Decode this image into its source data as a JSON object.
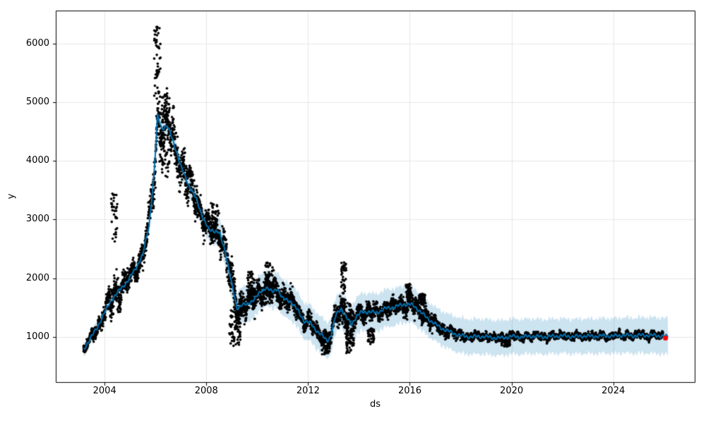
{
  "chart_data": {
    "type": "scatter",
    "description": "Prophet-style time series forecast: black observation dots, blue yhat line with light-blue uncertainty band, red marker on final point",
    "xlabel": "ds",
    "ylabel": "y",
    "xlim": [
      2002.08,
      2027.2
    ],
    "ylim": [
      230,
      6560
    ],
    "xticks": [
      2004,
      2008,
      2012,
      2016,
      2020,
      2024
    ],
    "yticks": [
      1000,
      2000,
      3000,
      4000,
      5000,
      6000
    ],
    "grid": true,
    "legend": null,
    "colors": {
      "line": "#0072B2",
      "band": "rgba(0,114,178,0.2)",
      "observations": "#000000",
      "last_point": "#ff0000",
      "gridline": "#e6e6e6",
      "spine": "#000000"
    },
    "forecast_line": {
      "name": "yhat",
      "points": [
        [
          2003.17,
          780
        ],
        [
          2003.4,
          950
        ],
        [
          2003.7,
          1150
        ],
        [
          2004.0,
          1420
        ],
        [
          2004.3,
          1650
        ],
        [
          2004.6,
          1800
        ],
        [
          2004.9,
          1950
        ],
        [
          2005.2,
          2150
        ],
        [
          2005.5,
          2400
        ],
        [
          2005.75,
          2900
        ],
        [
          2005.95,
          3800
        ],
        [
          2006.08,
          4760
        ],
        [
          2006.25,
          4550
        ],
        [
          2006.45,
          4600
        ],
        [
          2006.6,
          4450
        ],
        [
          2006.8,
          4200
        ],
        [
          2007.0,
          3900
        ],
        [
          2007.3,
          3600
        ],
        [
          2007.6,
          3350
        ],
        [
          2007.9,
          3000
        ],
        [
          2008.1,
          2820
        ],
        [
          2008.3,
          2815
        ],
        [
          2008.5,
          2780
        ],
        [
          2008.75,
          2450
        ],
        [
          2009.0,
          1900
        ],
        [
          2009.2,
          1480
        ],
        [
          2009.4,
          1560
        ],
        [
          2009.6,
          1540
        ],
        [
          2009.8,
          1620
        ],
        [
          2010.0,
          1700
        ],
        [
          2010.35,
          1850
        ],
        [
          2010.6,
          1760
        ],
        [
          2010.8,
          1830
        ],
        [
          2011.0,
          1650
        ],
        [
          2011.3,
          1610
        ],
        [
          2011.6,
          1450
        ],
        [
          2011.85,
          1270
        ],
        [
          2012.1,
          1230
        ],
        [
          2012.35,
          1100
        ],
        [
          2012.6,
          1000
        ],
        [
          2012.75,
          940
        ],
        [
          2012.9,
          1020
        ],
        [
          2013.1,
          1380
        ],
        [
          2013.3,
          1490
        ],
        [
          2013.5,
          1330
        ],
        [
          2013.7,
          1215
        ],
        [
          2013.9,
          1350
        ],
        [
          2014.1,
          1420
        ],
        [
          2014.4,
          1430
        ],
        [
          2014.7,
          1410
        ],
        [
          2015.0,
          1480
        ],
        [
          2015.4,
          1510
        ],
        [
          2015.8,
          1560
        ],
        [
          2016.1,
          1545
        ],
        [
          2016.35,
          1460
        ],
        [
          2016.6,
          1350
        ],
        [
          2016.9,
          1250
        ],
        [
          2017.2,
          1160
        ],
        [
          2017.6,
          1080
        ],
        [
          2018.0,
          1020
        ],
        [
          2018.4,
          1000
        ],
        [
          2018.8,
          1010
        ],
        [
          2019.2,
          990
        ],
        [
          2019.6,
          980
        ],
        [
          2020.0,
          1010
        ],
        [
          2020.4,
          1000
        ],
        [
          2020.8,
          1015
        ],
        [
          2021.2,
          1000
        ],
        [
          2021.6,
          1010
        ],
        [
          2022.0,
          1020
        ],
        [
          2022.4,
          1005
        ],
        [
          2022.8,
          1015
        ],
        [
          2023.2,
          1010
        ],
        [
          2023.6,
          1020
        ],
        [
          2024.0,
          1015
        ],
        [
          2024.4,
          1030
        ],
        [
          2024.8,
          1020
        ],
        [
          2025.2,
          1030
        ],
        [
          2025.6,
          1025
        ],
        [
          2026.0,
          1015
        ],
        [
          2026.15,
          1000
        ]
      ],
      "wiggle": {
        "amp1": 16,
        "period1": 0.5,
        "amp2": 20,
        "period2": 0.155
      }
    },
    "uncertainty_band": {
      "x_start": 2003.17,
      "x_end": 2026.15,
      "half_width": [
        [
          2003.17,
          110
        ],
        [
          2004.0,
          100
        ],
        [
          2005.0,
          110
        ],
        [
          2006.1,
          130
        ],
        [
          2007.0,
          160
        ],
        [
          2008.0,
          200
        ],
        [
          2008.8,
          260
        ],
        [
          2009.5,
          310
        ],
        [
          2010.5,
          300
        ],
        [
          2012.0,
          310
        ],
        [
          2013.0,
          300
        ],
        [
          2014.0,
          320
        ],
        [
          2015.0,
          320
        ],
        [
          2016.0,
          310
        ],
        [
          2017.0,
          290
        ],
        [
          2018.0,
          300
        ],
        [
          2020.0,
          300
        ],
        [
          2022.0,
          295
        ],
        [
          2024.0,
          300
        ],
        [
          2026.15,
          310
        ]
      ]
    },
    "observations": {
      "x_start": 2003.17,
      "x_end": 2025.95,
      "sample_step_years": 0.0035,
      "sigma_profile": [
        [
          2003.17,
          70
        ],
        [
          2004.0,
          110
        ],
        [
          2004.35,
          300
        ],
        [
          2004.7,
          220
        ],
        [
          2005.0,
          160
        ],
        [
          2005.5,
          180
        ],
        [
          2005.9,
          350
        ],
        [
          2006.15,
          550
        ],
        [
          2006.5,
          380
        ],
        [
          2007.0,
          300
        ],
        [
          2007.6,
          250
        ],
        [
          2008.1,
          200
        ],
        [
          2008.5,
          180
        ],
        [
          2008.8,
          260
        ],
        [
          2009.2,
          280
        ],
        [
          2009.7,
          200
        ],
        [
          2010.4,
          180
        ],
        [
          2011.0,
          170
        ],
        [
          2011.8,
          130
        ],
        [
          2012.3,
          110
        ],
        [
          2012.7,
          130
        ],
        [
          2013.1,
          130
        ],
        [
          2013.4,
          260
        ],
        [
          2013.7,
          200
        ],
        [
          2014.1,
          120
        ],
        [
          2014.5,
          150
        ],
        [
          2015.0,
          110
        ],
        [
          2015.9,
          140
        ],
        [
          2016.5,
          130
        ],
        [
          2017.0,
          100
        ],
        [
          2017.6,
          70
        ],
        [
          2018.2,
          55
        ],
        [
          2019.0,
          55
        ],
        [
          2020.0,
          55
        ],
        [
          2021.0,
          50
        ],
        [
          2022.0,
          50
        ],
        [
          2023.0,
          50
        ],
        [
          2024.0,
          50
        ],
        [
          2025.0,
          50
        ],
        [
          2025.95,
          50
        ]
      ],
      "outlier_clusters": [
        [
          2004.25,
          2004.5,
          2600,
          3460,
          35
        ],
        [
          2005.95,
          2006.2,
          5100,
          6280,
          45
        ],
        [
          2006.25,
          2006.55,
          3700,
          5100,
          60
        ],
        [
          2008.15,
          2008.5,
          2700,
          3280,
          50
        ],
        [
          2008.9,
          2009.35,
          800,
          1500,
          60
        ],
        [
          2009.6,
          2009.95,
          1550,
          2110,
          60
        ],
        [
          2010.3,
          2010.65,
          1500,
          2270,
          60
        ],
        [
          2012.5,
          2012.85,
          700,
          1050,
          70
        ],
        [
          2013.3,
          2013.5,
          1500,
          2270,
          50
        ],
        [
          2013.5,
          2013.8,
          720,
          1150,
          60
        ],
        [
          2014.35,
          2014.6,
          870,
          1150,
          40
        ],
        [
          2015.85,
          2016.05,
          1600,
          1905,
          40
        ],
        [
          2016.35,
          2016.65,
          1480,
          1730,
          45
        ],
        [
          2019.6,
          2019.95,
          820,
          950,
          40
        ]
      ],
      "y_min_observed": 650,
      "y_max_observed": 6280
    },
    "last_point": {
      "x": 2026.05,
      "y": 980
    }
  }
}
